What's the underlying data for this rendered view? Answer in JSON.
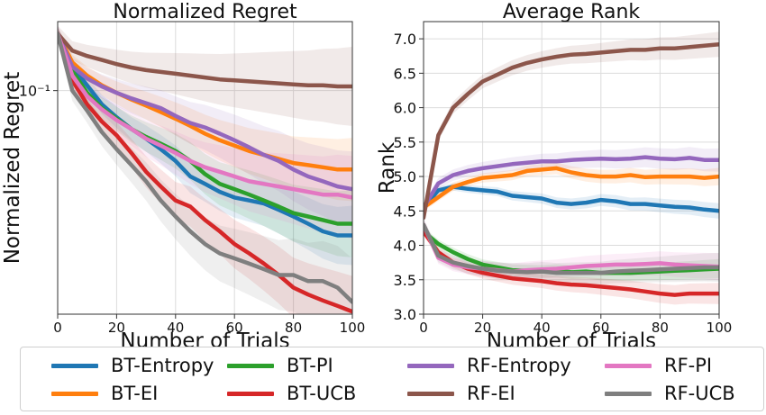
{
  "chart_data": [
    {
      "type": "line",
      "title": "Normalized Regret",
      "xlabel": "Number of Trials",
      "ylabel": "Normalized Regret",
      "yscale": "log",
      "xlim": [
        0,
        100
      ],
      "ylim": [
        0.0125,
        0.19
      ],
      "xticks": [
        0,
        20,
        40,
        60,
        80,
        100
      ],
      "yticks": [
        {
          "value": 0.1,
          "label": "10⁻¹"
        }
      ],
      "grid": true,
      "series": [
        {
          "name": "BT-Entropy",
          "x": [
            0,
            5,
            10,
            15,
            20,
            25,
            30,
            35,
            40,
            45,
            50,
            55,
            60,
            65,
            70,
            75,
            80,
            85,
            90,
            95,
            100
          ],
          "y": [
            0.17,
            0.125,
            0.105,
            0.088,
            0.078,
            0.07,
            0.064,
            0.058,
            0.052,
            0.045,
            0.042,
            0.039,
            0.037,
            0.036,
            0.035,
            0.033,
            0.031,
            0.029,
            0.027,
            0.026,
            0.026
          ]
        },
        {
          "name": "BT-EI",
          "x": [
            0,
            5,
            10,
            15,
            20,
            25,
            30,
            35,
            40,
            45,
            50,
            55,
            60,
            65,
            70,
            75,
            80,
            85,
            90,
            95,
            100
          ],
          "y": [
            0.17,
            0.13,
            0.115,
            0.105,
            0.098,
            0.092,
            0.087,
            0.082,
            0.077,
            0.072,
            0.067,
            0.063,
            0.06,
            0.057,
            0.055,
            0.053,
            0.051,
            0.05,
            0.049,
            0.048,
            0.048
          ]
        },
        {
          "name": "BT-PI",
          "x": [
            0,
            5,
            10,
            15,
            20,
            25,
            30,
            35,
            40,
            45,
            50,
            55,
            60,
            65,
            70,
            75,
            80,
            85,
            90,
            95,
            100
          ],
          "y": [
            0.17,
            0.12,
            0.098,
            0.085,
            0.077,
            0.07,
            0.065,
            0.061,
            0.057,
            0.052,
            0.046,
            0.042,
            0.04,
            0.038,
            0.036,
            0.034,
            0.032,
            0.031,
            0.03,
            0.029,
            0.029
          ]
        },
        {
          "name": "BT-UCB",
          "x": [
            0,
            5,
            10,
            15,
            20,
            25,
            30,
            35,
            40,
            45,
            50,
            55,
            60,
            65,
            70,
            75,
            80,
            85,
            90,
            95,
            100
          ],
          "y": [
            0.17,
            0.11,
            0.088,
            0.075,
            0.066,
            0.056,
            0.047,
            0.041,
            0.036,
            0.034,
            0.03,
            0.027,
            0.024,
            0.022,
            0.02,
            0.018,
            0.016,
            0.015,
            0.0142,
            0.0135,
            0.0128
          ]
        },
        {
          "name": "RF-Entropy",
          "x": [
            0,
            5,
            10,
            15,
            20,
            25,
            30,
            35,
            40,
            45,
            50,
            55,
            60,
            65,
            70,
            75,
            80,
            85,
            90,
            95,
            100
          ],
          "y": [
            0.17,
            0.125,
            0.112,
            0.104,
            0.098,
            0.093,
            0.089,
            0.085,
            0.079,
            0.074,
            0.071,
            0.067,
            0.063,
            0.059,
            0.055,
            0.052,
            0.048,
            0.045,
            0.043,
            0.041,
            0.04
          ]
        },
        {
          "name": "RF-EI",
          "x": [
            0,
            5,
            10,
            15,
            20,
            25,
            30,
            35,
            40,
            45,
            50,
            55,
            60,
            65,
            70,
            75,
            80,
            85,
            90,
            95,
            100
          ],
          "y": [
            0.17,
            0.145,
            0.138,
            0.133,
            0.128,
            0.124,
            0.121,
            0.119,
            0.117,
            0.115,
            0.113,
            0.111,
            0.11,
            0.109,
            0.108,
            0.107,
            0.106,
            0.105,
            0.105,
            0.104,
            0.104
          ]
        },
        {
          "name": "RF-PI",
          "x": [
            0,
            5,
            10,
            15,
            20,
            25,
            30,
            35,
            40,
            45,
            50,
            55,
            60,
            65,
            70,
            75,
            80,
            85,
            90,
            95,
            100
          ],
          "y": [
            0.17,
            0.115,
            0.095,
            0.084,
            0.076,
            0.07,
            0.064,
            0.06,
            0.056,
            0.052,
            0.049,
            0.047,
            0.045,
            0.043,
            0.042,
            0.041,
            0.04,
            0.039,
            0.038,
            0.038,
            0.037
          ]
        },
        {
          "name": "RF-UCB",
          "x": [
            0,
            5,
            10,
            15,
            20,
            25,
            30,
            35,
            40,
            45,
            50,
            55,
            60,
            65,
            70,
            75,
            80,
            85,
            90,
            95,
            100
          ],
          "y": [
            0.17,
            0.1,
            0.083,
            0.068,
            0.058,
            0.05,
            0.043,
            0.036,
            0.031,
            0.027,
            0.024,
            0.022,
            0.021,
            0.02,
            0.019,
            0.018,
            0.018,
            0.017,
            0.017,
            0.016,
            0.014
          ]
        }
      ]
    },
    {
      "type": "line",
      "title": "Average Rank",
      "xlabel": "Number of Trials",
      "ylabel": "Rank",
      "xlim": [
        0,
        100
      ],
      "ylim": [
        3.0,
        7.25
      ],
      "xticks": [
        0,
        20,
        40,
        60,
        80,
        100
      ],
      "yticks": [
        3.0,
        3.5,
        4.0,
        4.5,
        5.0,
        5.5,
        6.0,
        6.5,
        7.0
      ],
      "grid": true,
      "series": [
        {
          "name": "BT-Entropy",
          "x": [
            0,
            5,
            10,
            15,
            20,
            25,
            30,
            35,
            40,
            45,
            50,
            55,
            60,
            65,
            70,
            75,
            80,
            85,
            90,
            95,
            100
          ],
          "y": [
            4.55,
            4.8,
            4.85,
            4.82,
            4.8,
            4.78,
            4.72,
            4.7,
            4.68,
            4.62,
            4.6,
            4.62,
            4.66,
            4.64,
            4.6,
            4.6,
            4.58,
            4.56,
            4.55,
            4.52,
            4.5
          ]
        },
        {
          "name": "BT-EI",
          "x": [
            0,
            5,
            10,
            15,
            20,
            25,
            30,
            35,
            40,
            45,
            50,
            55,
            60,
            65,
            70,
            75,
            80,
            85,
            90,
            95,
            100
          ],
          "y": [
            4.55,
            4.7,
            4.85,
            4.92,
            4.98,
            5.0,
            5.02,
            5.08,
            5.1,
            5.12,
            5.06,
            5.02,
            5.0,
            5.0,
            5.02,
            4.99,
            5.0,
            5.0,
            5.0,
            4.98,
            5.0
          ]
        },
        {
          "name": "BT-PI",
          "x": [
            0,
            5,
            10,
            15,
            20,
            25,
            30,
            35,
            40,
            45,
            50,
            55,
            60,
            65,
            70,
            75,
            80,
            85,
            90,
            95,
            100
          ],
          "y": [
            4.2,
            4.02,
            3.9,
            3.8,
            3.72,
            3.68,
            3.64,
            3.63,
            3.62,
            3.63,
            3.61,
            3.62,
            3.6,
            3.6,
            3.6,
            3.61,
            3.62,
            3.63,
            3.64,
            3.65,
            3.66
          ]
        },
        {
          "name": "BT-UCB",
          "x": [
            0,
            5,
            10,
            15,
            20,
            25,
            30,
            35,
            40,
            45,
            50,
            55,
            60,
            65,
            70,
            75,
            80,
            85,
            90,
            95,
            100
          ],
          "y": [
            4.2,
            3.9,
            3.75,
            3.66,
            3.6,
            3.56,
            3.52,
            3.5,
            3.48,
            3.45,
            3.43,
            3.42,
            3.4,
            3.38,
            3.36,
            3.33,
            3.3,
            3.28,
            3.3,
            3.3,
            3.3
          ]
        },
        {
          "name": "RF-Entropy",
          "x": [
            0,
            5,
            10,
            15,
            20,
            25,
            30,
            35,
            40,
            45,
            50,
            55,
            60,
            65,
            70,
            75,
            80,
            85,
            90,
            95,
            100
          ],
          "y": [
            4.55,
            4.9,
            5.02,
            5.08,
            5.12,
            5.15,
            5.18,
            5.2,
            5.22,
            5.22,
            5.24,
            5.25,
            5.26,
            5.25,
            5.26,
            5.28,
            5.26,
            5.25,
            5.27,
            5.24,
            5.24
          ]
        },
        {
          "name": "RF-EI",
          "x": [
            0,
            5,
            10,
            15,
            20,
            25,
            30,
            35,
            40,
            45,
            50,
            55,
            60,
            65,
            70,
            75,
            80,
            85,
            90,
            95,
            100
          ],
          "y": [
            4.4,
            5.6,
            6.0,
            6.2,
            6.38,
            6.48,
            6.58,
            6.65,
            6.7,
            6.74,
            6.77,
            6.78,
            6.8,
            6.82,
            6.84,
            6.84,
            6.86,
            6.86,
            6.88,
            6.9,
            6.92
          ]
        },
        {
          "name": "RF-PI",
          "x": [
            0,
            5,
            10,
            15,
            20,
            25,
            30,
            35,
            40,
            45,
            50,
            55,
            60,
            65,
            70,
            75,
            80,
            85,
            90,
            95,
            100
          ],
          "y": [
            4.3,
            3.82,
            3.72,
            3.68,
            3.66,
            3.64,
            3.62,
            3.64,
            3.65,
            3.66,
            3.68,
            3.7,
            3.71,
            3.72,
            3.72,
            3.73,
            3.74,
            3.72,
            3.71,
            3.7,
            3.69
          ]
        },
        {
          "name": "RF-UCB",
          "x": [
            0,
            5,
            10,
            15,
            20,
            25,
            30,
            35,
            40,
            45,
            50,
            55,
            60,
            65,
            70,
            75,
            80,
            85,
            90,
            95,
            100
          ],
          "y": [
            4.3,
            3.85,
            3.75,
            3.7,
            3.66,
            3.63,
            3.62,
            3.61,
            3.62,
            3.6,
            3.6,
            3.6,
            3.6,
            3.62,
            3.63,
            3.64,
            3.65,
            3.66,
            3.67,
            3.68,
            3.68
          ]
        }
      ]
    }
  ],
  "colors": {
    "BT-Entropy": "#1f77b4",
    "BT-EI": "#ff7f0e",
    "BT-PI": "#2ca02c",
    "BT-UCB": "#d62728",
    "RF-Entropy": "#9467bd",
    "RF-EI": "#8c564b",
    "RF-PI": "#e377c2",
    "RF-UCB": "#7f7f7f"
  },
  "legend": {
    "placement": "bottom",
    "items": [
      "BT-Entropy",
      "BT-EI",
      "BT-PI",
      "BT-UCB",
      "RF-Entropy",
      "RF-EI",
      "RF-PI",
      "RF-UCB"
    ]
  }
}
